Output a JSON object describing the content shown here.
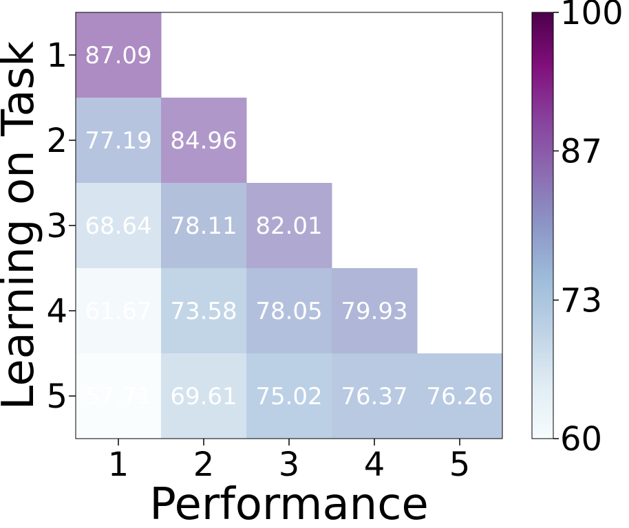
{
  "chart_data": {
    "type": "heatmap",
    "xlabel": "Performance",
    "ylabel": "Learning on Task",
    "x_categories": [
      "1",
      "2",
      "3",
      "4",
      "5"
    ],
    "y_categories": [
      "1",
      "2",
      "3",
      "4",
      "5"
    ],
    "rows": [
      {
        "y": "1",
        "values": [
          87.09,
          null,
          null,
          null,
          null
        ],
        "labels": [
          "87.09",
          "",
          "",
          "",
          ""
        ]
      },
      {
        "y": "2",
        "values": [
          77.19,
          84.96,
          null,
          null,
          null
        ],
        "labels": [
          "77.19",
          "84.96",
          "",
          "",
          ""
        ]
      },
      {
        "y": "3",
        "values": [
          68.64,
          78.11,
          82.01,
          null,
          null
        ],
        "labels": [
          "68.64",
          "78.11",
          "82.01",
          "",
          ""
        ]
      },
      {
        "y": "4",
        "values": [
          61.67,
          73.58,
          78.05,
          79.93,
          null
        ],
        "labels": [
          "61.67",
          "73.58",
          "78.05",
          "79.93",
          ""
        ]
      },
      {
        "y": "5",
        "values": [
          57.71,
          69.61,
          75.02,
          76.37,
          76.26
        ],
        "labels": [
          "57.71",
          "69.61",
          "75.02",
          "76.37",
          "76.26"
        ]
      }
    ],
    "colorbar": {
      "min": 60,
      "max": 100,
      "ticks": [
        60,
        73,
        87,
        100
      ],
      "tick_labels": [
        "60",
        "73",
        "87",
        "100"
      ]
    },
    "colormap": "BuPu",
    "annotation_color": "#ffffff",
    "cell_alpha": 0.7
  }
}
